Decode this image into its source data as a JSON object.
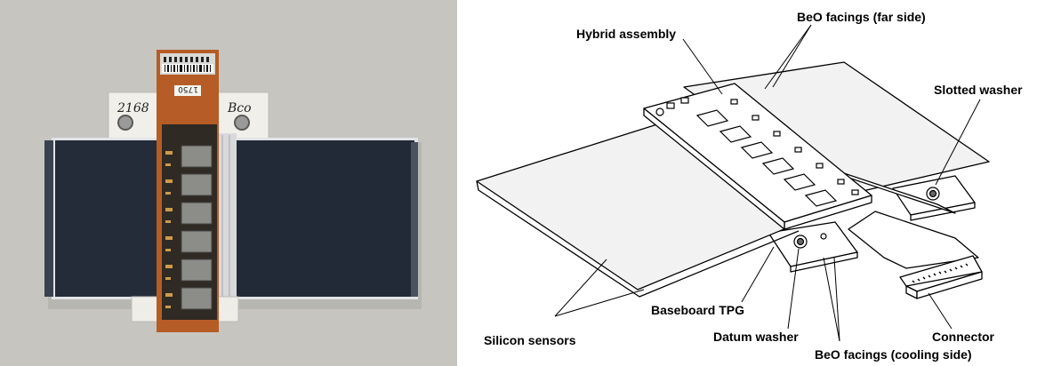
{
  "photo": {
    "module_number_left": "2168",
    "module_number_right": "Bco",
    "hybrid_tag": "1750"
  },
  "diagram": {
    "labels": {
      "beo_far": "BeO facings (far side)",
      "hybrid": "Hybrid assembly",
      "slotted_washer": "Slotted washer",
      "baseboard": "Baseboard TPG",
      "silicon_sensors": "Silicon sensors",
      "datum_washer": "Datum washer",
      "connector": "Connector",
      "beo_cooling": "BeO facings (cooling side)"
    }
  }
}
